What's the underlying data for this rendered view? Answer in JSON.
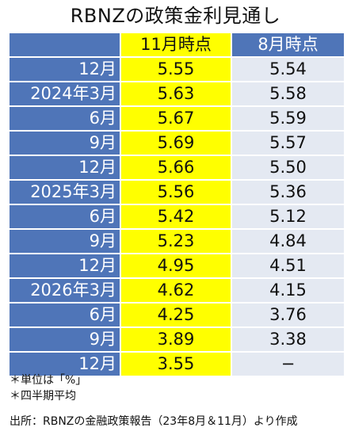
{
  "title": "RBNZの政策金利見通し",
  "columns": {
    "corner": "",
    "nov": "11月時点",
    "aug": "8月時点"
  },
  "rows": [
    {
      "label": "12月",
      "nov": "5.55",
      "aug": "5.54"
    },
    {
      "label": "2024年3月",
      "nov": "5.63",
      "aug": "5.58"
    },
    {
      "label": "6月",
      "nov": "5.67",
      "aug": "5.59"
    },
    {
      "label": "9月",
      "nov": "5.69",
      "aug": "5.57"
    },
    {
      "label": "12月",
      "nov": "5.66",
      "aug": "5.50"
    },
    {
      "label": "2025年3月",
      "nov": "5.56",
      "aug": "5.36"
    },
    {
      "label": "6月",
      "nov": "5.42",
      "aug": "5.12"
    },
    {
      "label": "9月",
      "nov": "5.23",
      "aug": "4.84"
    },
    {
      "label": "12月",
      "nov": "4.95",
      "aug": "4.51"
    },
    {
      "label": "2026年3月",
      "nov": "4.62",
      "aug": "4.15"
    },
    {
      "label": "6月",
      "nov": "4.25",
      "aug": "3.76"
    },
    {
      "label": "9月",
      "nov": "3.89",
      "aug": "3.38"
    },
    {
      "label": "12月",
      "nov": "3.55",
      "aug": "−"
    }
  ],
  "notes": [
    "＊単位は「%」",
    "＊四半期平均"
  ],
  "source": "出所：RBNZの金融政策報告（23年8月＆11月）より作成",
  "colors": {
    "header_blue": "#4f75b8",
    "highlight_yellow": "#ffff00",
    "light_cell": "#e4e9f2"
  }
}
